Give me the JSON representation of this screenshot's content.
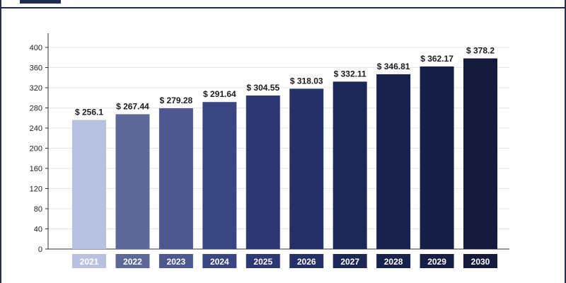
{
  "chart_data": {
    "type": "bar",
    "categories": [
      "2021",
      "2022",
      "2023",
      "2024",
      "2025",
      "2026",
      "2027",
      "2028",
      "2029",
      "2030"
    ],
    "values": [
      256.1,
      267.44,
      279.28,
      291.64,
      304.55,
      318.03,
      332.11,
      346.81,
      362.17,
      378.2
    ],
    "value_labels": [
      "$ 256.1",
      "$ 267.44",
      "$ 279.28",
      "$ 291.64",
      "$ 304.55",
      "$ 318.03",
      "$ 332.11",
      "$ 346.81",
      "$ 362.17",
      "$ 378.2"
    ],
    "bar_colors": [
      "#b8c1e0",
      "#5e6898",
      "#4d5890",
      "#3a4682",
      "#2c3773",
      "#253066",
      "#1d2756",
      "#19224d",
      "#161e45",
      "#131a3c"
    ],
    "yticks": [
      0,
      40,
      80,
      120,
      160,
      200,
      240,
      280,
      320,
      360,
      400
    ],
    "ylim": [
      0,
      400
    ],
    "grid": true,
    "legend": "none"
  }
}
